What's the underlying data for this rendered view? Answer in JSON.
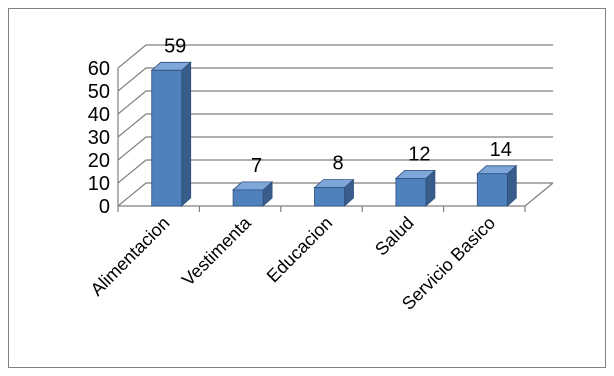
{
  "chart_data": {
    "type": "bar",
    "style": "3d-column",
    "categories": [
      "Alimentacion",
      "Vestimenta",
      "Educacion",
      "Salud",
      "Servicio Basico"
    ],
    "values": [
      59,
      7,
      8,
      12,
      14
    ],
    "data_labels": [
      "59",
      "7",
      "8",
      "12",
      "14"
    ],
    "ylim": [
      0,
      60
    ],
    "yticks": [
      "0",
      "10",
      "20",
      "30",
      "40",
      "50",
      "60"
    ],
    "grid": true,
    "legend": "none",
    "title": "",
    "xlabel": "",
    "ylabel": ""
  },
  "colors": {
    "bar_front": "#4F81BD",
    "bar_side": "#385D8A",
    "bar_top": "#7FA6D8",
    "bar_outline": "#2F5080",
    "grid": "#7F7F7F",
    "frame_border": "#7F7F7F"
  }
}
